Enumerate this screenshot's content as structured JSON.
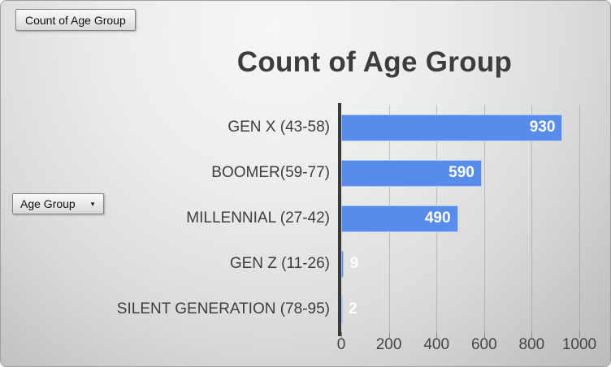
{
  "pivot_buttons": {
    "value_field_label": "Count of Age Group",
    "axis_field_label": "Age Group",
    "dropdown_icon": "▼"
  },
  "chart_data": {
    "type": "bar",
    "orientation": "horizontal",
    "title": "Count of Age Group",
    "categories": [
      "GEN X (43-58)",
      "BOOMER(59-77)",
      "MILLENNIAL (27-42)",
      "GEN Z (11-26)",
      "SILENT GENERATION (78-95)"
    ],
    "values": [
      930,
      590,
      490,
      9,
      2
    ],
    "data_labels": [
      "930",
      "590",
      "490",
      "9",
      "2"
    ],
    "xlim": [
      0,
      1000
    ],
    "x_ticks": [
      "0",
      "200",
      "400",
      "600",
      "800",
      "1000"
    ],
    "grid": true,
    "legend": "none",
    "bar_color": "#578ceb",
    "data_label_color": "#ffffff",
    "axis_line_color": "#3a3a3a",
    "text_color": "#3d3d3d"
  }
}
